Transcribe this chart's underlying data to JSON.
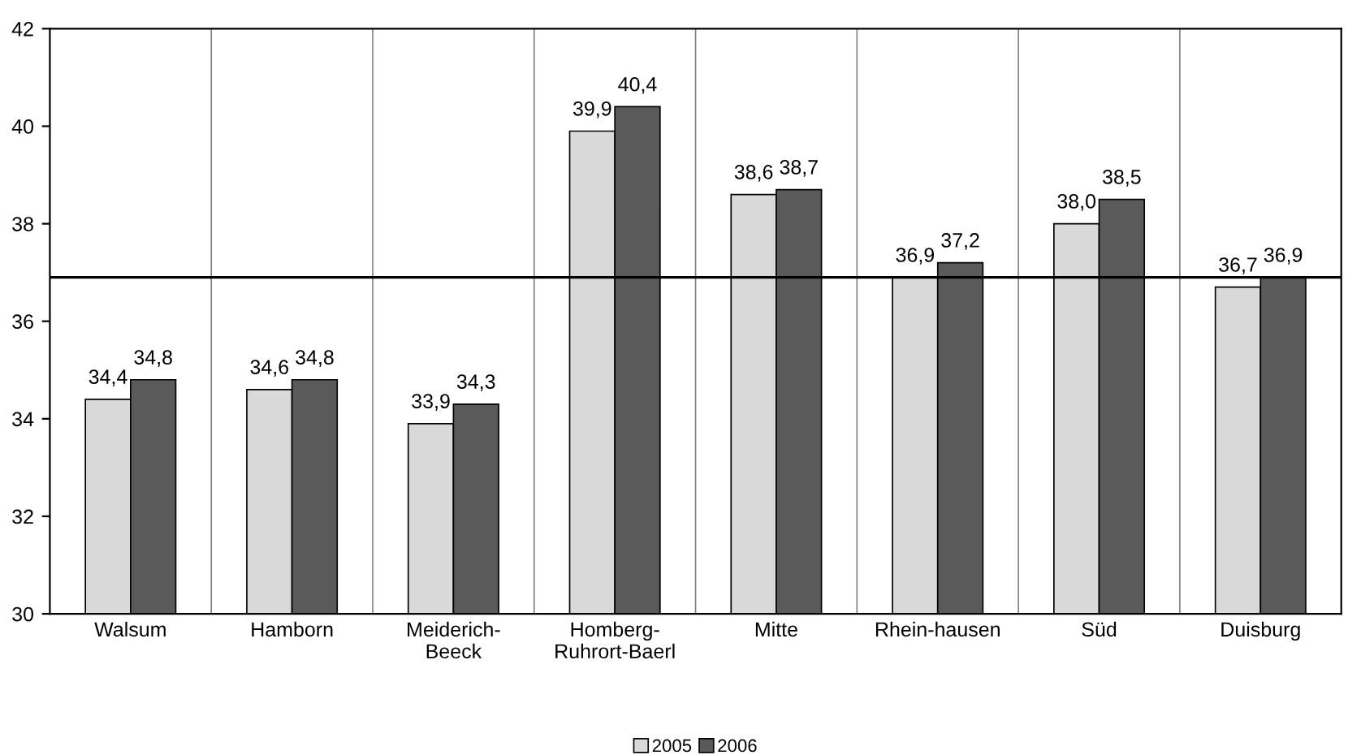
{
  "chart_data": {
    "type": "bar",
    "categories": [
      "Walsum",
      "Hamborn",
      "Meiderich-\nBeeck",
      "Homberg-\nRuhrort-Baerl",
      "Mitte",
      "Rhein-hausen",
      "Süd",
      "Duisburg"
    ],
    "series": [
      {
        "name": "2005",
        "color": "#d9d9d9",
        "values": [
          34.4,
          34.6,
          33.9,
          39.9,
          38.6,
          36.9,
          38.0,
          36.7
        ],
        "value_labels": [
          "34,4",
          "34,6",
          "33,9",
          "39,9",
          "38,6",
          "36,9",
          "38,0",
          "36,7"
        ]
      },
      {
        "name": "2006",
        "color": "#5a5a5a",
        "values": [
          34.8,
          34.8,
          34.3,
          40.4,
          38.7,
          37.2,
          38.5,
          36.9
        ],
        "value_labels": [
          "34,8",
          "34,8",
          "34,3",
          "40,4",
          "38,7",
          "37,2",
          "38,5",
          "36,9"
        ]
      }
    ],
    "ylim": [
      30,
      42
    ],
    "yticks": [
      30,
      32,
      34,
      36,
      38,
      40,
      42
    ],
    "grid": "x",
    "legend": "bottom",
    "ref_lines": [
      {
        "axis": "y",
        "value": 36.9,
        "color": "#000000",
        "line_style": "solid"
      }
    ]
  }
}
